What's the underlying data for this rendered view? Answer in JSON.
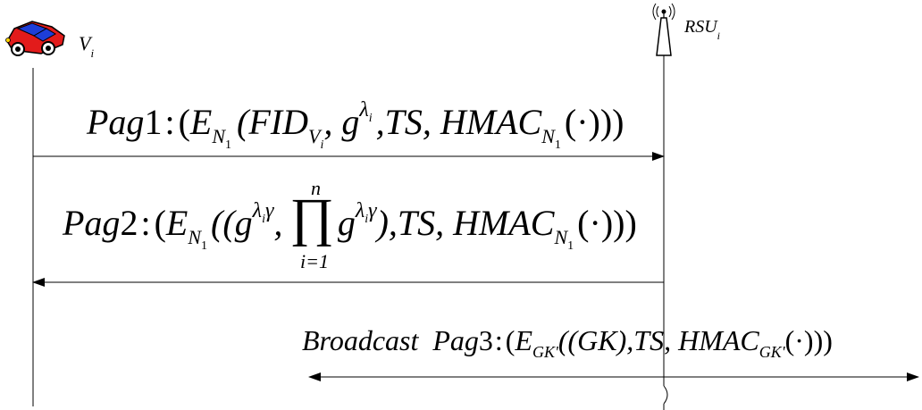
{
  "vehicle": {
    "base": "V",
    "sub": "i"
  },
  "rsu": {
    "base": "RSU",
    "sub": "i"
  },
  "msg1": {
    "pag": "Pag",
    "num": "1",
    "colon": ":",
    "open": "(",
    "E": "E",
    "N": "N",
    "one": "1",
    "args1": "(FID",
    "V": "V",
    "i": "i",
    "comma_g": ", g",
    "lam": "λ",
    "lam_i": "i",
    "rest": ",TS, HMAC",
    "tail": "(·)))"
  },
  "msg2": {
    "pag": "Pag",
    "num": "2",
    "colon": ":",
    "open": "(",
    "E": "E",
    "N": "N",
    "one": "1",
    "args1": "((g",
    "exp1": "λ",
    "exp1_i": "i",
    "exp1_gamma": "γ",
    "comma": ",",
    "prod": "∏",
    "prod_top": "n",
    "prod_bottom": "i=1",
    "g2": "g",
    "exp2": "λ",
    "exp2_i": "i",
    "exp2_gamma": "γ",
    "rest": "),TS, HMAC",
    "tail": "(·)))"
  },
  "msg3": {
    "broadcast": "Broadcast",
    "pag": "Pag",
    "num": "3",
    "colon": ":",
    "open": "(",
    "E": "E",
    "sub": "GK'",
    "args": "((GK),TS, HMAC",
    "tail": "(·)))"
  }
}
